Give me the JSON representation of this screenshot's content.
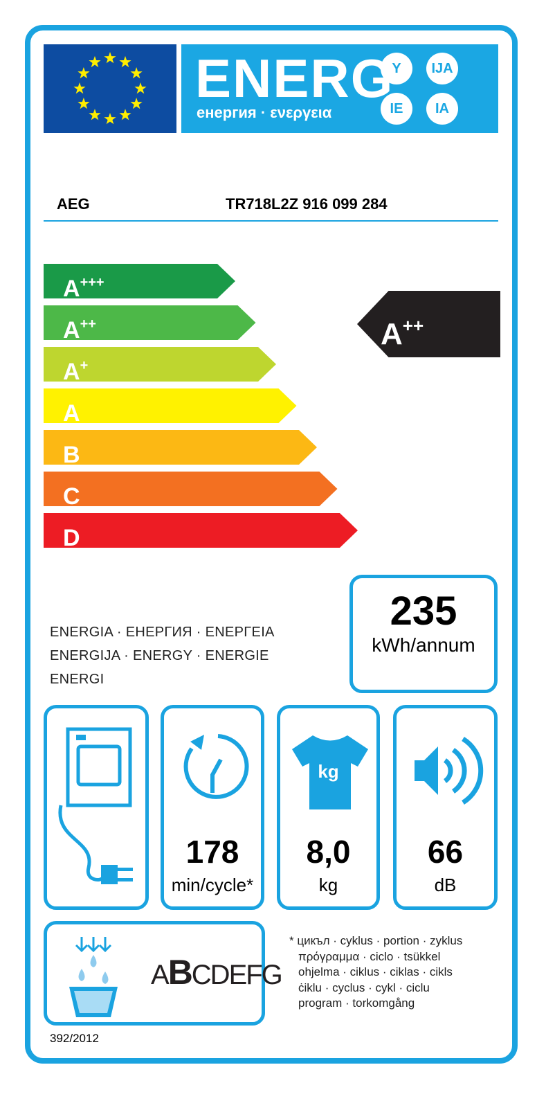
{
  "header": {
    "title": "ENERG",
    "subtitle": "енергия · ενεργεια",
    "suffixes": [
      "Y",
      "IJA",
      "IE",
      "IA"
    ]
  },
  "product": {
    "brand": "AEG",
    "model": "TR718L2Z  916 099 284"
  },
  "scale": [
    {
      "label": "A",
      "sup": "+++",
      "color": "#1a9a48"
    },
    {
      "label": "A",
      "sup": "++",
      "color": "#4db848"
    },
    {
      "label": "A",
      "sup": "+",
      "color": "#bed62f"
    },
    {
      "label": "A",
      "sup": "",
      "color": "#fff200"
    },
    {
      "label": "B",
      "sup": "",
      "color": "#fcb814"
    },
    {
      "label": "C",
      "sup": "",
      "color": "#f37021"
    },
    {
      "label": "D",
      "sup": "",
      "color": "#ed1c24"
    }
  ],
  "rating": {
    "label": "A",
    "sup": "++"
  },
  "consumption": {
    "value": "235",
    "unit": "kWh/annum"
  },
  "energia_lines": [
    "ENERGIA · ЕНЕРГИЯ · ΕΝΕΡΓΕΙΑ",
    "ENERGIJA · ENERGY · ENERGIE",
    "ENERGI"
  ],
  "specs": [
    {
      "icon": "condenser-dryer-icon",
      "value": "",
      "unit": ""
    },
    {
      "icon": "cycle-time-icon",
      "value": "178",
      "unit": "min/cycle*"
    },
    {
      "icon": "tshirt-kg-icon",
      "value": "8,0",
      "unit": "kg",
      "icon_text": "kg"
    },
    {
      "icon": "speaker-icon",
      "value": "66",
      "unit": "dB"
    }
  ],
  "condensation": {
    "class_first": "A",
    "class_selected": "B",
    "class_rest": "CDEFG"
  },
  "footnote": {
    "star": "*",
    "lines": [
      "цикъл · cyklus · portion · zyklus",
      "πρόγραμμα · ciclo · tsükkel",
      "ohjelma · ciklus · ciklas · cikls",
      "ċiklu · cyclus · cykl · ciclu",
      "program · torkomgång"
    ]
  },
  "regulation": "392/2012",
  "colors": {
    "frame": "#1aa3e0",
    "eu_blue": "#0d4ca1",
    "header_blue": "#1ba7e3",
    "star": "#ffed00"
  }
}
